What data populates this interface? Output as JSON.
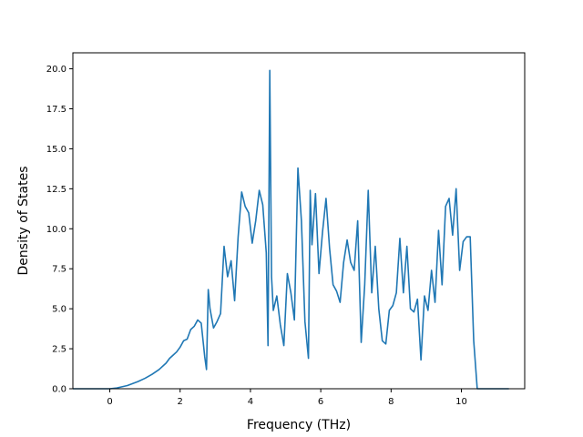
{
  "chart_data": {
    "type": "line",
    "title": "",
    "xlabel": "Frequency (THz)",
    "ylabel": "Density of States",
    "xlim": [
      -1.05,
      11.8
    ],
    "ylim": [
      0,
      21.0
    ],
    "x_ticks": [
      0,
      2,
      4,
      6,
      8,
      10
    ],
    "x_tick_labels": [
      "0",
      "2",
      "4",
      "6",
      "8",
      "10"
    ],
    "y_ticks": [
      0,
      2.5,
      5,
      7.5,
      10,
      12.5,
      15,
      17.5,
      20
    ],
    "y_tick_labels": [
      "0.0",
      "2.5",
      "5.0",
      "7.5",
      "10.0",
      "12.5",
      "15.0",
      "17.5",
      "20.0"
    ],
    "grid": false,
    "legend": "none",
    "series": [
      {
        "color": "#1f77b4",
        "x": [
          -1.05,
          -0.5,
          0.0,
          0.2,
          0.5,
          0.8,
          1.0,
          1.2,
          1.4,
          1.6,
          1.7,
          1.8,
          1.9,
          2.0,
          2.1,
          2.2,
          2.3,
          2.4,
          2.5,
          2.6,
          2.7,
          2.75,
          2.8,
          2.85,
          2.95,
          3.05,
          3.15,
          3.25,
          3.35,
          3.45,
          3.55,
          3.65,
          3.75,
          3.85,
          3.95,
          4.05,
          4.15,
          4.25,
          4.35,
          4.45,
          4.5,
          4.55,
          4.6,
          4.65,
          4.75,
          4.85,
          4.95,
          5.05,
          5.15,
          5.25,
          5.35,
          5.45,
          5.55,
          5.65,
          5.7,
          5.75,
          5.85,
          5.95,
          6.05,
          6.15,
          6.25,
          6.35,
          6.45,
          6.55,
          6.65,
          6.75,
          6.85,
          6.95,
          7.05,
          7.15,
          7.25,
          7.35,
          7.45,
          7.55,
          7.65,
          7.75,
          7.85,
          7.95,
          8.05,
          8.15,
          8.25,
          8.35,
          8.45,
          8.55,
          8.65,
          8.75,
          8.85,
          8.95,
          9.05,
          9.15,
          9.25,
          9.35,
          9.45,
          9.55,
          9.65,
          9.75,
          9.85,
          9.95,
          10.05,
          10.15,
          10.25,
          10.35,
          10.45,
          11.35
        ],
        "y": [
          0.0,
          0.0,
          0.0,
          0.05,
          0.2,
          0.45,
          0.65,
          0.9,
          1.2,
          1.6,
          1.9,
          2.1,
          2.3,
          2.6,
          3.0,
          3.1,
          3.7,
          3.9,
          4.3,
          4.1,
          2.0,
          1.2,
          6.2,
          5.0,
          3.8,
          4.2,
          4.7,
          8.9,
          7.0,
          8.0,
          5.5,
          9.5,
          12.3,
          11.4,
          11.0,
          9.1,
          10.5,
          12.4,
          11.5,
          8.5,
          2.7,
          19.9,
          7.0,
          4.9,
          5.8,
          4.0,
          2.7,
          7.2,
          6.0,
          4.3,
          13.8,
          10.5,
          4.2,
          1.9,
          12.4,
          9.0,
          12.2,
          7.2,
          9.8,
          11.9,
          8.8,
          6.5,
          6.1,
          5.4,
          7.9,
          9.3,
          7.9,
          7.4,
          10.5,
          2.9,
          6.5,
          12.4,
          6.0,
          8.9,
          5.0,
          3.0,
          2.8,
          4.9,
          5.2,
          6.0,
          9.4,
          6.0,
          8.9,
          5.0,
          4.8,
          5.6,
          1.8,
          5.8,
          4.9,
          7.4,
          5.4,
          9.9,
          6.5,
          11.4,
          11.9,
          9.6,
          12.5,
          7.4,
          9.2,
          9.5,
          9.5,
          3.0,
          0.0,
          0.0
        ]
      }
    ]
  }
}
